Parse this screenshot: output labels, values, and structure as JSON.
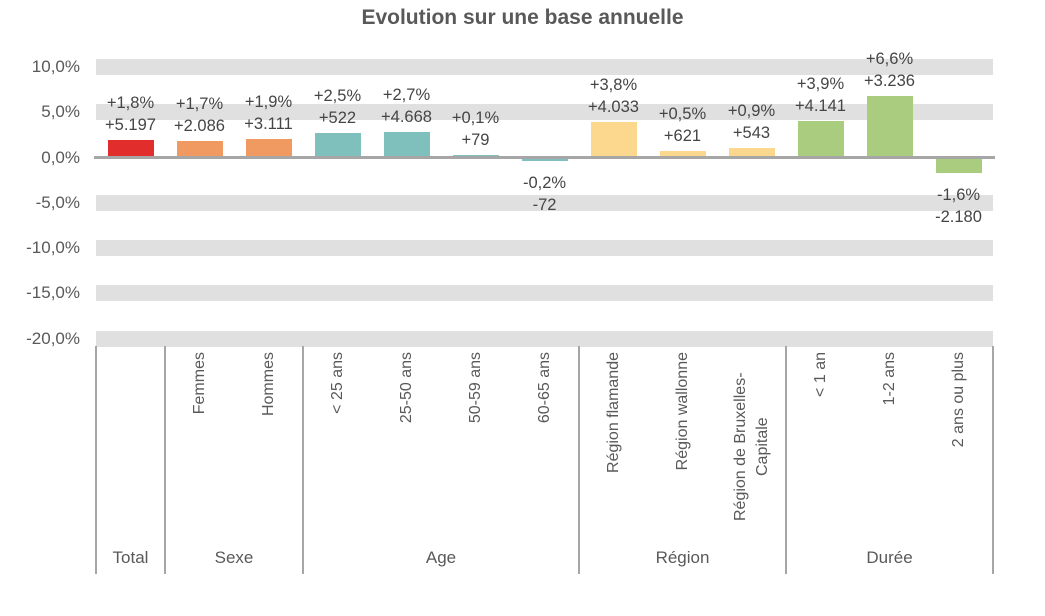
{
  "chart_data": {
    "type": "bar",
    "title": "Evolution sur une base annuelle",
    "value_format": "percent change + absolute change",
    "legend": "none",
    "y_axis": {
      "range_pct": [
        -20,
        10
      ],
      "gridlines": "horizontal gray bands at each tick",
      "ticks": [
        {
          "pct": 10,
          "label": "10,0%"
        },
        {
          "pct": 5,
          "label": "5,0%"
        },
        {
          "pct": 0,
          "label": "0,0%"
        },
        {
          "pct": -5,
          "label": "-5,0%"
        },
        {
          "pct": -10,
          "label": "-10,0%"
        },
        {
          "pct": -15,
          "label": "-15,0%"
        },
        {
          "pct": -20,
          "label": "-20,0%"
        }
      ]
    },
    "groups": [
      {
        "label": "Total",
        "color": "#e22d2d",
        "categories": [
          {
            "name": "",
            "pct": 1.8,
            "pct_label": "+1,8%",
            "abs_label": "+5.197"
          }
        ]
      },
      {
        "label": "Sexe",
        "color": "#f09960",
        "categories": [
          {
            "name": "Femmes",
            "pct": 1.7,
            "pct_label": "+1,7%",
            "abs_label": "+2.086"
          },
          {
            "name": "Hommes",
            "pct": 1.9,
            "pct_label": "+1,9%",
            "abs_label": "+3.111"
          }
        ]
      },
      {
        "label": "Age",
        "color": "#7fbfbc",
        "categories": [
          {
            "name": "< 25 ans",
            "pct": 2.5,
            "pct_label": "+2,5%",
            "abs_label": "+522"
          },
          {
            "name": "25-50 ans",
            "pct": 2.7,
            "pct_label": "+2,7%",
            "abs_label": "+4.668"
          },
          {
            "name": "50-59 ans",
            "pct": 0.1,
            "pct_label": "+0,1%",
            "abs_label": "+79"
          },
          {
            "name": "60-65 ans",
            "pct": -0.2,
            "pct_label": "-0,2%",
            "abs_label": "-72"
          }
        ]
      },
      {
        "label": "Région",
        "color": "#fbd88d",
        "categories": [
          {
            "name": "Région flamande",
            "pct": 3.8,
            "pct_label": "+3,8%",
            "abs_label": "+4.033"
          },
          {
            "name": "Région wallonne",
            "pct": 0.5,
            "pct_label": "+0,5%",
            "abs_label": "+621"
          },
          {
            "name": "Région de Bruxelles-Capitale",
            "pct": 0.9,
            "pct_label": "+0,9%",
            "abs_label": "+543"
          }
        ]
      },
      {
        "label": "Durée",
        "color": "#a9cc7f",
        "categories": [
          {
            "name": "< 1 an",
            "pct": 3.9,
            "pct_label": "+3,9%",
            "abs_label": "+4.141"
          },
          {
            "name": "1-2 ans",
            "pct": 6.6,
            "pct_label": "+6,6%",
            "abs_label": "+3.236"
          },
          {
            "name": "2 ans ou plus",
            "pct": -1.6,
            "pct_label": "-1,6%",
            "abs_label": "-2.180"
          }
        ]
      }
    ],
    "colors": {
      "band": "#e0e0e0",
      "axis_line": "#a6a6a6",
      "tick_text": "#595959",
      "label_text": "#454545",
      "title_text": "#595959"
    }
  }
}
